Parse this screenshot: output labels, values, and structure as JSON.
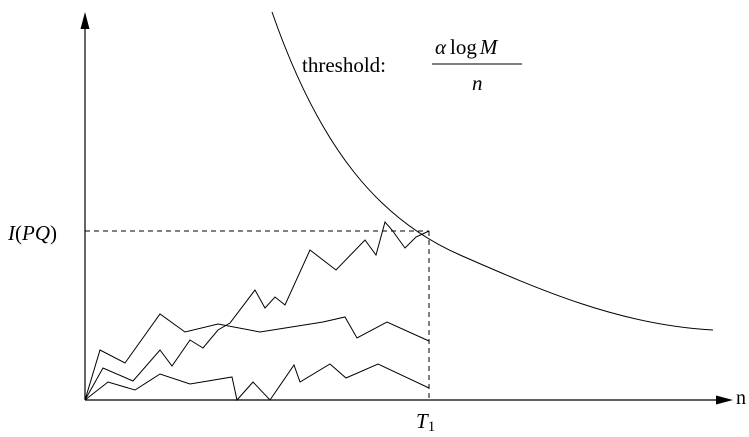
{
  "labels": {
    "x_axis": "n",
    "y_value_pre": "I",
    "y_value_open": "(",
    "y_value_var": "PQ",
    "y_value_close": ")",
    "t_var": "T",
    "t_sub": "1",
    "threshold_word": "threshold:",
    "threshold_alpha": "α",
    "threshold_log": "log",
    "threshold_m": "M",
    "threshold_den": "n"
  },
  "colors": {
    "ink": "#000000",
    "background": "#ffffff"
  }
}
